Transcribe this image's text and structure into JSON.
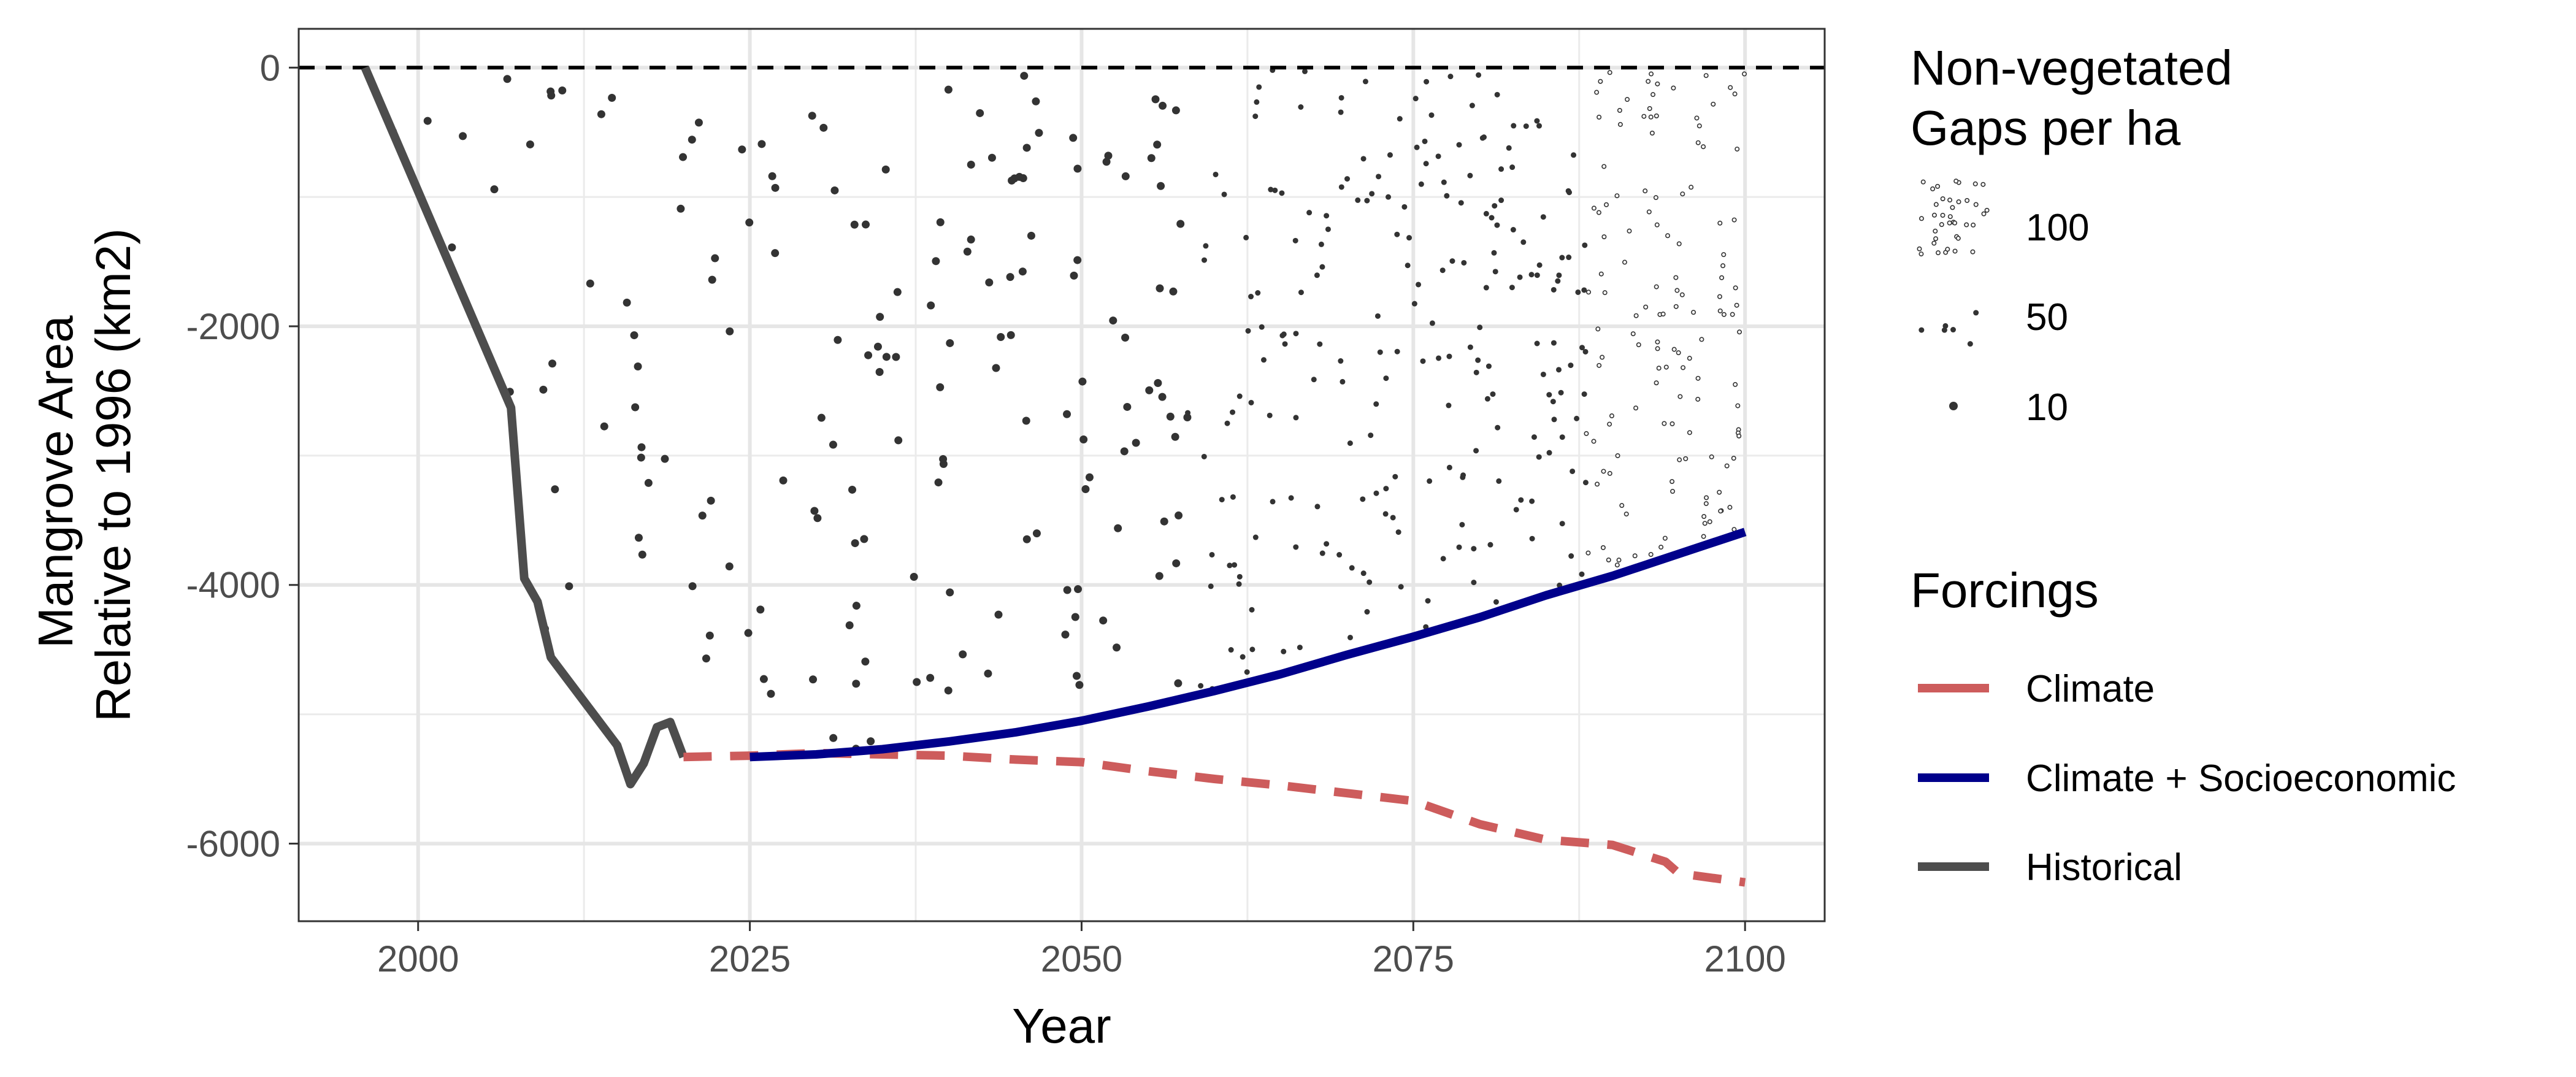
{
  "chart_data": {
    "type": "line",
    "xlabel": "Year",
    "ylabel_lines": [
      "Mangrove Area",
      "Relative to 1996 (km2)"
    ],
    "xlim": [
      1991,
      2106
    ],
    "ylim": [
      -6600,
      300
    ],
    "x_ticks": [
      2000,
      2025,
      2050,
      2075,
      2100
    ],
    "x_tick_labels": [
      "2000",
      "2025",
      "2050",
      "2075",
      "2100"
    ],
    "y_ticks": [
      0,
      -2000,
      -4000,
      -6000
    ],
    "y_tick_labels": [
      "0",
      "-2000",
      "-4000",
      "-6000"
    ],
    "grid": true,
    "reference_line": {
      "y": 0,
      "style": "dashed",
      "color": "#000000"
    },
    "series": [
      {
        "name": "Historical",
        "color": "#4d4d4d",
        "style": "solid",
        "x": [
          1996,
          2007,
          2008,
          2009,
          2010,
          2015,
          2016,
          2017,
          2018,
          2019,
          2020
        ],
        "y": [
          0,
          -2630,
          -3950,
          -4130,
          -4560,
          -5240,
          -5540,
          -5380,
          -5100,
          -5060,
          -5330
        ]
      },
      {
        "name": "Climate",
        "color": "#cd5c5c",
        "style": "dashed",
        "x": [
          2020,
          2025,
          2030,
          2035,
          2040,
          2045,
          2050,
          2055,
          2060,
          2065,
          2070,
          2075,
          2080,
          2085,
          2090,
          2094,
          2095,
          2100
        ],
        "y": [
          -5330,
          -5320,
          -5300,
          -5310,
          -5320,
          -5350,
          -5370,
          -5440,
          -5500,
          -5550,
          -5610,
          -5670,
          -5850,
          -5970,
          -6010,
          -6140,
          -6230,
          -6300
        ]
      },
      {
        "name": "Climate + Socioeconomic",
        "color": "#00008b",
        "style": "solid",
        "x": [
          2025,
          2030,
          2035,
          2040,
          2045,
          2050,
          2055,
          2060,
          2065,
          2070,
          2075,
          2080,
          2085,
          2090,
          2095,
          2100
        ],
        "y": [
          -5330,
          -5310,
          -5270,
          -5210,
          -5140,
          -5050,
          -4940,
          -4820,
          -4690,
          -4540,
          -4400,
          -4250,
          -4080,
          -3930,
          -3760,
          -3590
        ]
      }
    ],
    "gap_density": {
      "description_key": "Non-vegetated gaps per ha shown as point pattern between 0 and the Climate + Socioeconomic line",
      "x": [
        2000,
        2025,
        2050,
        2075,
        2100
      ],
      "density": [
        10,
        15,
        25,
        50,
        100
      ]
    },
    "legend_size": {
      "title_lines": [
        "Non-vegetated",
        "Gaps per ha"
      ],
      "entries": [
        "100",
        "50",
        "10"
      ]
    },
    "legend_lines": {
      "title": "Forcings",
      "entries": [
        {
          "label": "Climate",
          "color": "#cd5c5c"
        },
        {
          "label": "Climate + Socioeconomic",
          "color": "#00008b"
        },
        {
          "label": "Historical",
          "color": "#4d4d4d"
        }
      ]
    }
  }
}
